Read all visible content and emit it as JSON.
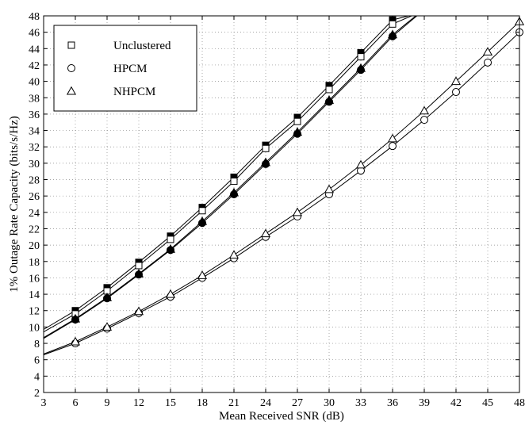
{
  "chart_data": {
    "type": "line",
    "xlabel": "Mean Received SNR (dB)",
    "ylabel": "1% Outage Rate Capacity (bits/s/Hz)",
    "xlim": [
      3,
      48
    ],
    "ylim": [
      2,
      48
    ],
    "xticks": [
      3,
      6,
      9,
      12,
      15,
      18,
      21,
      24,
      27,
      30,
      33,
      36,
      39,
      42,
      45,
      48
    ],
    "yticks": [
      2,
      4,
      6,
      8,
      10,
      12,
      14,
      16,
      18,
      20,
      22,
      24,
      26,
      28,
      30,
      32,
      34,
      36,
      38,
      40,
      42,
      44,
      46,
      48
    ],
    "grid": true,
    "legend_position": "top-left",
    "legend": [
      {
        "label": "Unclustered",
        "marker": "square"
      },
      {
        "label": "HPCM",
        "marker": "circle"
      },
      {
        "label": "NHPCM",
        "marker": "triangle"
      }
    ],
    "series": [
      {
        "marker": "square",
        "fill": "#000000",
        "x": [
          3,
          6,
          9,
          12,
          15,
          18,
          21,
          24,
          27,
          30,
          33,
          36,
          37.5
        ],
        "y": [
          9.7,
          12.0,
          14.8,
          17.9,
          21.1,
          24.6,
          28.3,
          32.2,
          35.6,
          39.5,
          43.5,
          47.5,
          48
        ]
      },
      {
        "marker": "square",
        "fill": "#ffffff",
        "x": [
          3,
          6,
          9,
          12,
          15,
          18,
          21,
          24,
          27,
          30,
          33,
          36,
          37.8
        ],
        "y": [
          9.4,
          11.6,
          14.4,
          17.5,
          20.7,
          24.2,
          27.8,
          31.8,
          35.1,
          39.0,
          43.0,
          47.0,
          48
        ]
      },
      {
        "marker": "circle",
        "fill": "#000000",
        "x": [
          3,
          6,
          9,
          12,
          15,
          18,
          21,
          24,
          27,
          30,
          33,
          36,
          38.3
        ],
        "y": [
          8.6,
          10.9,
          13.5,
          16.4,
          19.4,
          22.7,
          26.2,
          29.9,
          33.6,
          37.5,
          41.4,
          45.5,
          48
        ]
      },
      {
        "marker": "triangle",
        "fill": "#000000",
        "x": [
          3,
          6,
          9,
          12,
          15,
          18,
          21,
          24,
          27,
          30,
          33,
          36,
          38.2
        ],
        "y": [
          8.7,
          11.0,
          13.6,
          16.5,
          19.5,
          22.9,
          26.4,
          30.1,
          33.8,
          37.7,
          41.6,
          45.7,
          48
        ]
      },
      {
        "marker": "circle",
        "fill": "#ffffff",
        "x": [
          3,
          6,
          9,
          12,
          15,
          18,
          21,
          24,
          27,
          30,
          33,
          36,
          39,
          42,
          45,
          48
        ],
        "y": [
          6.6,
          8.0,
          9.8,
          11.7,
          13.7,
          16.0,
          18.4,
          21.0,
          23.5,
          26.2,
          29.1,
          32.1,
          35.3,
          38.7,
          42.3,
          46.0
        ]
      },
      {
        "marker": "triangle",
        "fill": "#ffffff",
        "x": [
          3,
          6,
          9,
          12,
          15,
          18,
          21,
          24,
          27,
          30,
          33,
          36,
          39,
          42,
          45,
          48
        ],
        "y": [
          6.7,
          8.2,
          10.0,
          11.9,
          14.0,
          16.3,
          18.8,
          21.4,
          24.0,
          26.8,
          29.8,
          33.0,
          36.4,
          40.0,
          43.6,
          47.3
        ]
      }
    ]
  }
}
